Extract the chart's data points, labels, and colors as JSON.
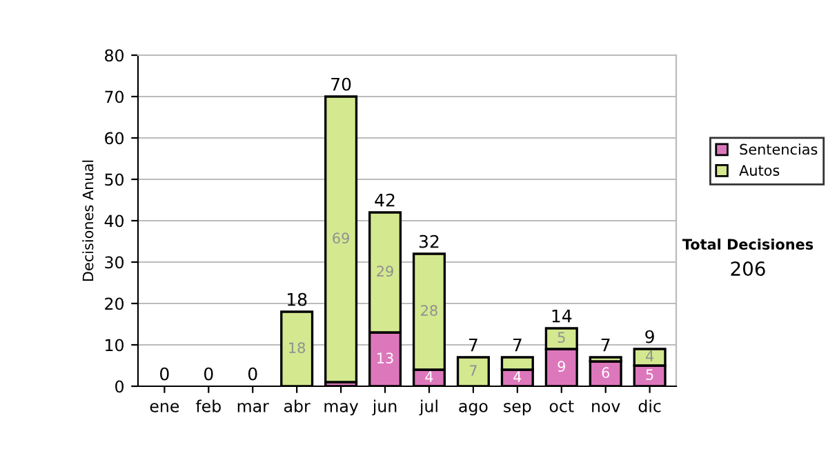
{
  "chart_data": {
    "type": "bar",
    "stacked": true,
    "ylabel": "Decisiones Anual",
    "categories": [
      "ene",
      "feb",
      "mar",
      "abr",
      "may",
      "jun",
      "jul",
      "ago",
      "sep",
      "oct",
      "nov",
      "dic"
    ],
    "series": [
      {
        "name": "Sentencias",
        "color": "#dd77bb",
        "values": [
          0,
          0,
          0,
          0,
          1,
          13,
          4,
          0,
          4,
          9,
          6,
          5
        ],
        "value_labels": [
          null,
          null,
          null,
          null,
          null,
          "13",
          "4",
          null,
          "4",
          "9",
          "6",
          "5"
        ]
      },
      {
        "name": "Autos",
        "color": "#d4e890",
        "values": [
          0,
          0,
          0,
          18,
          69,
          29,
          28,
          7,
          3,
          5,
          1,
          4
        ],
        "value_labels": [
          null,
          null,
          null,
          "18",
          "69",
          "29",
          "28",
          "7",
          null,
          "5",
          null,
          "4"
        ]
      }
    ],
    "totals": [
      "0",
      "0",
      "0",
      "18",
      "70",
      "42",
      "32",
      "7",
      "7",
      "14",
      "7",
      "9"
    ],
    "ylim": [
      0,
      80
    ],
    "yticks": [
      0,
      10,
      20,
      30,
      40,
      50,
      60,
      70,
      80
    ],
    "grid": "y",
    "legend": "right",
    "annotations": [
      "Total Decisiones",
      "206"
    ]
  }
}
